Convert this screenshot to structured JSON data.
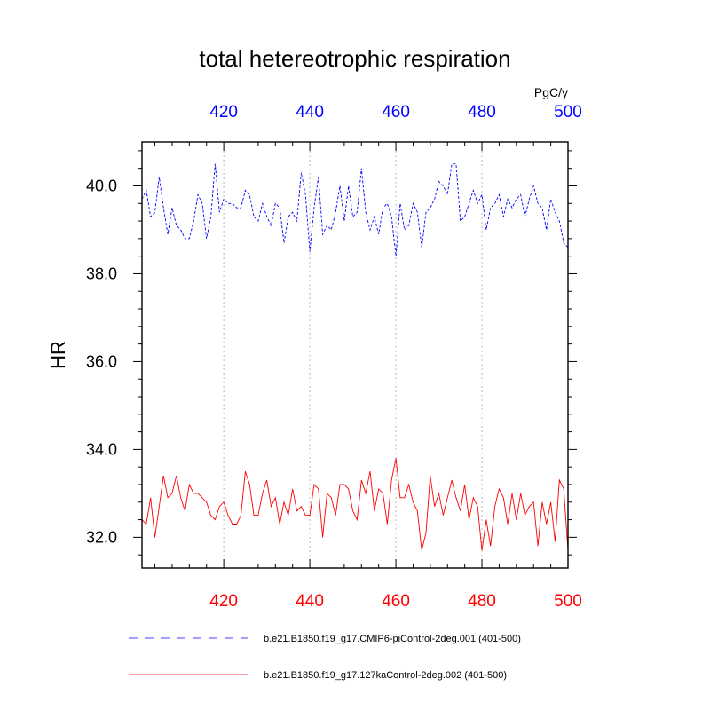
{
  "chart_data": {
    "type": "line",
    "title": "total hetereotrophic respiration",
    "units": "PgC/y",
    "ylabel": "HR",
    "xlim": [
      401,
      500
    ],
    "ylim": [
      31.3,
      41.0
    ],
    "x_ticks": [
      420,
      440,
      460,
      480,
      500
    ],
    "x_tick_labels": [
      "420",
      "440",
      "460",
      "480",
      "500"
    ],
    "y_ticks": [
      32,
      34,
      36,
      38,
      40
    ],
    "y_tick_labels": [
      "32.0",
      "34.0",
      "36.0",
      "38.0",
      "40.0"
    ],
    "grid": "vertical dotted at major x ticks",
    "legend_position": "below plot",
    "series": [
      {
        "name": "b.e21.B1850.f19_g17.CMIP6-piControl-2deg.001 (401-500)",
        "color": "#0000ff",
        "dash": "dashed",
        "x_axis_position": "top",
        "x": [
          401,
          402,
          403,
          404,
          405,
          406,
          407,
          408,
          409,
          410,
          411,
          412,
          413,
          414,
          415,
          416,
          417,
          418,
          419,
          420,
          421,
          422,
          423,
          424,
          425,
          426,
          427,
          428,
          429,
          430,
          431,
          432,
          433,
          434,
          435,
          436,
          437,
          438,
          439,
          440,
          441,
          442,
          443,
          444,
          445,
          446,
          447,
          448,
          449,
          450,
          451,
          452,
          453,
          454,
          455,
          456,
          457,
          458,
          459,
          460,
          461,
          462,
          463,
          464,
          465,
          466,
          467,
          468,
          469,
          470,
          471,
          472,
          473,
          474,
          475,
          476,
          477,
          478,
          479,
          480,
          481,
          482,
          483,
          484,
          485,
          486,
          487,
          488,
          489,
          490,
          491,
          492,
          493,
          494,
          495,
          496,
          497,
          498,
          499,
          500
        ],
        "values": [
          39.7,
          39.9,
          39.3,
          39.4,
          40.2,
          39.5,
          38.9,
          39.5,
          39.1,
          39.0,
          38.8,
          38.8,
          39.2,
          39.8,
          39.6,
          38.8,
          39.3,
          40.5,
          39.4,
          39.7,
          39.6,
          39.6,
          39.5,
          39.5,
          39.9,
          39.8,
          39.3,
          39.2,
          39.6,
          39.3,
          39.1,
          39.6,
          39.5,
          38.7,
          39.3,
          39.4,
          39.2,
          40.3,
          39.8,
          38.5,
          39.5,
          40.2,
          38.9,
          39.1,
          39.0,
          39.4,
          40.0,
          39.2,
          40.0,
          39.3,
          39.4,
          40.4,
          39.4,
          39.0,
          39.3,
          38.9,
          39.5,
          39.6,
          39.3,
          38.4,
          39.6,
          39.0,
          39.1,
          39.6,
          39.4,
          38.6,
          39.4,
          39.5,
          39.7,
          40.1,
          40.0,
          39.8,
          40.5,
          40.5,
          39.2,
          39.3,
          39.6,
          39.9,
          39.6,
          39.8,
          39.0,
          39.5,
          39.6,
          39.8,
          39.3,
          39.7,
          39.5,
          39.7,
          39.8,
          39.3,
          39.7,
          40.0,
          39.6,
          39.5,
          39.0,
          39.7,
          39.4,
          39.2,
          38.7,
          38.6
        ],
        "y_plot": [
          39.7,
          39.9,
          39.3,
          39.4,
          40.2,
          39.5,
          38.9,
          39.5,
          39.1,
          39.0,
          38.8,
          38.8,
          39.2,
          39.8,
          39.6,
          38.8,
          39.3,
          40.5,
          39.4,
          39.7,
          39.6,
          39.6,
          39.5,
          39.5,
          39.9,
          39.8,
          39.3,
          39.2,
          39.6,
          39.3,
          39.1,
          39.6,
          39.5,
          38.7,
          39.3,
          39.4,
          39.2,
          40.3,
          39.8,
          38.5,
          39.5,
          40.2,
          38.9,
          39.1,
          39.0,
          39.4,
          40.0,
          39.2,
          40.0,
          39.3,
          39.4,
          40.4,
          39.4,
          39.0,
          39.3,
          38.9,
          39.5,
          39.6,
          39.3,
          38.4,
          39.6,
          39.0,
          39.1,
          39.6,
          39.4,
          38.6,
          39.4,
          39.5,
          39.7,
          40.1,
          40.0,
          39.8,
          40.5,
          40.5,
          39.2,
          39.3,
          39.6,
          39.9,
          39.6,
          39.8,
          39.0,
          39.5,
          39.6,
          39.8,
          39.3,
          39.7,
          39.5,
          39.7,
          39.8,
          39.3,
          39.7,
          40.0,
          39.6,
          39.5,
          39.0,
          39.7,
          39.4,
          39.2,
          38.7,
          38.6
        ]
      },
      {
        "name": "b.e21.B1850.f19_g17.127kaControl-2deg.002 (401-500)",
        "color": "#ff0000",
        "dash": "solid",
        "x_axis_position": "bottom",
        "x": [
          401,
          402,
          403,
          404,
          405,
          406,
          407,
          408,
          409,
          410,
          411,
          412,
          413,
          414,
          415,
          416,
          417,
          418,
          419,
          420,
          421,
          422,
          423,
          424,
          425,
          426,
          427,
          428,
          429,
          430,
          431,
          432,
          433,
          434,
          435,
          436,
          437,
          438,
          439,
          440,
          441,
          442,
          443,
          444,
          445,
          446,
          447,
          448,
          449,
          450,
          451,
          452,
          453,
          454,
          455,
          456,
          457,
          458,
          459,
          460,
          461,
          462,
          463,
          464,
          465,
          466,
          467,
          468,
          469,
          470,
          471,
          472,
          473,
          474,
          475,
          476,
          477,
          478,
          479,
          480,
          481,
          482,
          483,
          484,
          485,
          486,
          487,
          488,
          489,
          490,
          491,
          492,
          493,
          494,
          495,
          496,
          497,
          498,
          499,
          500
        ],
        "values": [
          32.4,
          32.3,
          32.9,
          32.0,
          32.7,
          33.4,
          32.9,
          33.0,
          33.4,
          32.9,
          32.6,
          33.2,
          33.0,
          33.0,
          32.9,
          32.8,
          32.5,
          32.4,
          32.7,
          32.8,
          32.5,
          32.3,
          32.3,
          32.5,
          33.5,
          33.2,
          32.5,
          32.5,
          33.0,
          33.3,
          32.7,
          32.9,
          32.3,
          32.8,
          32.5,
          33.1,
          32.6,
          32.7,
          32.5,
          32.5,
          33.2,
          33.1,
          32.0,
          33.0,
          32.9,
          32.5,
          33.2,
          33.2,
          33.1,
          32.6,
          32.4,
          33.3,
          33.0,
          33.5,
          32.6,
          33.1,
          33.0,
          32.3,
          33.3,
          33.8,
          32.9,
          32.9,
          33.2,
          32.8,
          32.6,
          31.7,
          32.1,
          33.4,
          32.7,
          33.0,
          32.5,
          32.9,
          33.3,
          32.9,
          32.6,
          33.2,
          32.4,
          32.9,
          32.7,
          31.7,
          32.4,
          31.8,
          32.7,
          33.1,
          32.9,
          32.3,
          33.0,
          32.4,
          33.0,
          32.5,
          32.7,
          32.8,
          31.8,
          32.8,
          32.3,
          32.8,
          31.9,
          33.3,
          33.1,
          31.7
        ],
        "y_plot": [
          32.4,
          32.3,
          32.9,
          32.0,
          32.7,
          33.4,
          32.9,
          33.0,
          33.4,
          32.9,
          32.6,
          33.2,
          33.0,
          33.0,
          32.9,
          32.8,
          32.5,
          32.4,
          32.7,
          32.8,
          32.5,
          32.3,
          32.3,
          32.5,
          33.5,
          33.2,
          32.5,
          32.5,
          33.0,
          33.3,
          32.7,
          32.9,
          32.3,
          32.8,
          32.5,
          33.1,
          32.6,
          32.7,
          32.5,
          32.5,
          33.2,
          33.1,
          32.0,
          33.0,
          32.9,
          32.5,
          33.2,
          33.2,
          33.1,
          32.6,
          32.4,
          33.3,
          33.0,
          33.5,
          32.6,
          33.1,
          33.0,
          32.3,
          33.3,
          33.8,
          32.9,
          32.9,
          33.2,
          32.8,
          32.6,
          31.7,
          32.1,
          33.4,
          32.7,
          33.0,
          32.5,
          32.9,
          33.3,
          32.9,
          32.6,
          33.2,
          32.4,
          32.9,
          32.7,
          31.7,
          32.4,
          31.8,
          32.7,
          33.1,
          32.9,
          32.3,
          33.0,
          32.4,
          33.0,
          32.5,
          32.7,
          32.8,
          31.8,
          32.8,
          32.3,
          32.8,
          31.9,
          33.3,
          33.1,
          31.7
        ]
      }
    ]
  }
}
